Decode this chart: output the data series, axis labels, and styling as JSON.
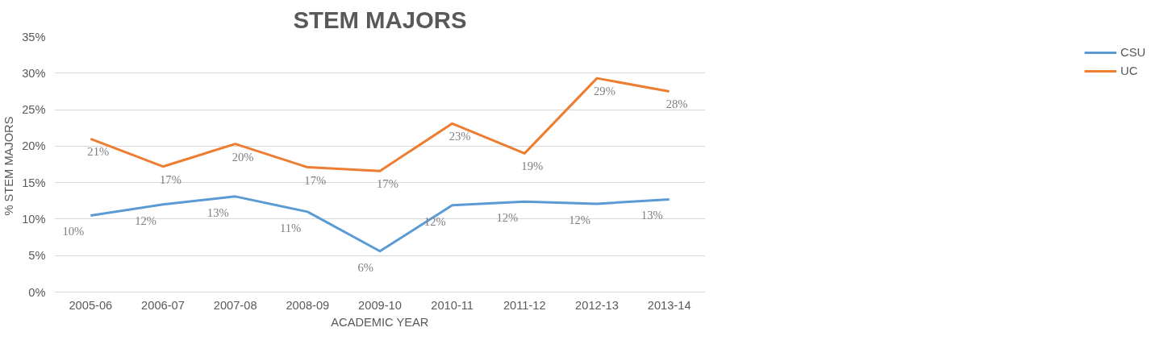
{
  "chart_data": {
    "type": "line",
    "title": "STEM MAJORS",
    "xlabel": "ACADEMIC YEAR",
    "ylabel": "% STEM  MAJORS",
    "categories": [
      "2005-06",
      "2006-07",
      "2007-08",
      "2008-09",
      "2009-10",
      "2010-11",
      "2011-12",
      "2012-13",
      "2013-14"
    ],
    "series": [
      {
        "name": "CSU",
        "color": "#5b9bd5",
        "values": [
          10.5,
          12.0,
          13.1,
          11.0,
          5.6,
          11.9,
          12.4,
          12.1,
          12.7
        ],
        "value_labels": [
          "10%",
          "12%",
          "13%",
          "11%",
          "6%",
          "12%",
          "12%",
          "12%",
          "13%"
        ]
      },
      {
        "name": "UC",
        "color": "#ed7d31",
        "values": [
          21.0,
          17.2,
          20.3,
          17.1,
          16.6,
          23.1,
          19.0,
          29.3,
          27.5
        ],
        "value_labels": [
          "21%",
          "17%",
          "20%",
          "17%",
          "17%",
          "23%",
          "19%",
          "29%",
          "28%"
        ]
      }
    ],
    "ylim": [
      0,
      35
    ],
    "yticks": [
      {
        "value": 0,
        "label": "0%"
      },
      {
        "value": 5,
        "label": "5%"
      },
      {
        "value": 10,
        "label": "10%"
      },
      {
        "value": 15,
        "label": "15%"
      },
      {
        "value": 20,
        "label": "20%"
      },
      {
        "value": 25,
        "label": "25%"
      },
      {
        "value": 30,
        "label": "30%"
      },
      {
        "value": 35,
        "label": "35%"
      }
    ],
    "grid": "y",
    "legend": "right",
    "marker": "none",
    "line_style": "solid"
  }
}
